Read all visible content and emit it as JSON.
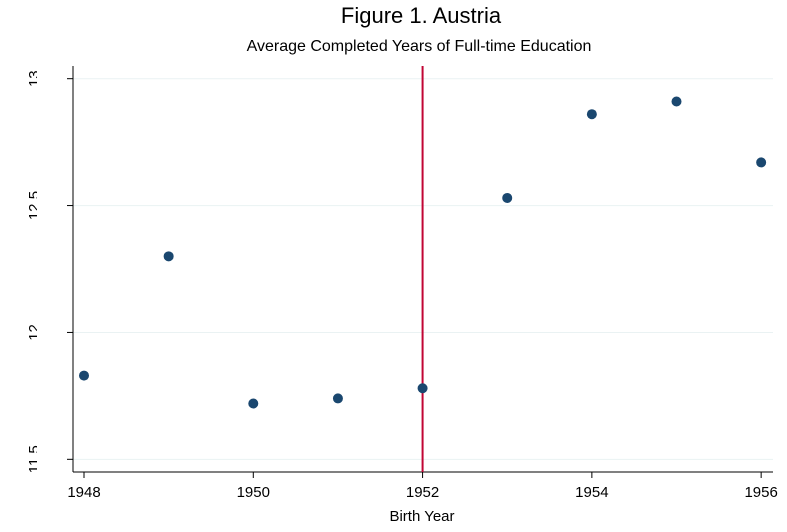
{
  "chart_data": {
    "type": "scatter",
    "title": "Figure 1. Austria",
    "subtitle": "Average Completed Years of Full-time Education",
    "x_label": "Birth Year",
    "x": [
      1948,
      1949,
      1950,
      1951,
      1952,
      1953,
      1954,
      1955,
      1956
    ],
    "values": [
      11.83,
      12.3,
      11.72,
      11.74,
      11.78,
      12.53,
      12.86,
      12.91,
      12.67
    ],
    "color": "#1a476f",
    "xlim": [
      1947.87,
      1956.14
    ],
    "xticks": [
      1948,
      1950,
      1952,
      1954,
      1956
    ],
    "ylim": [
      11.45,
      13.05
    ],
    "yticks": [
      11.5,
      12,
      12.5,
      13
    ],
    "grid": true,
    "vline": 1952,
    "vline_color": "#c10534"
  }
}
